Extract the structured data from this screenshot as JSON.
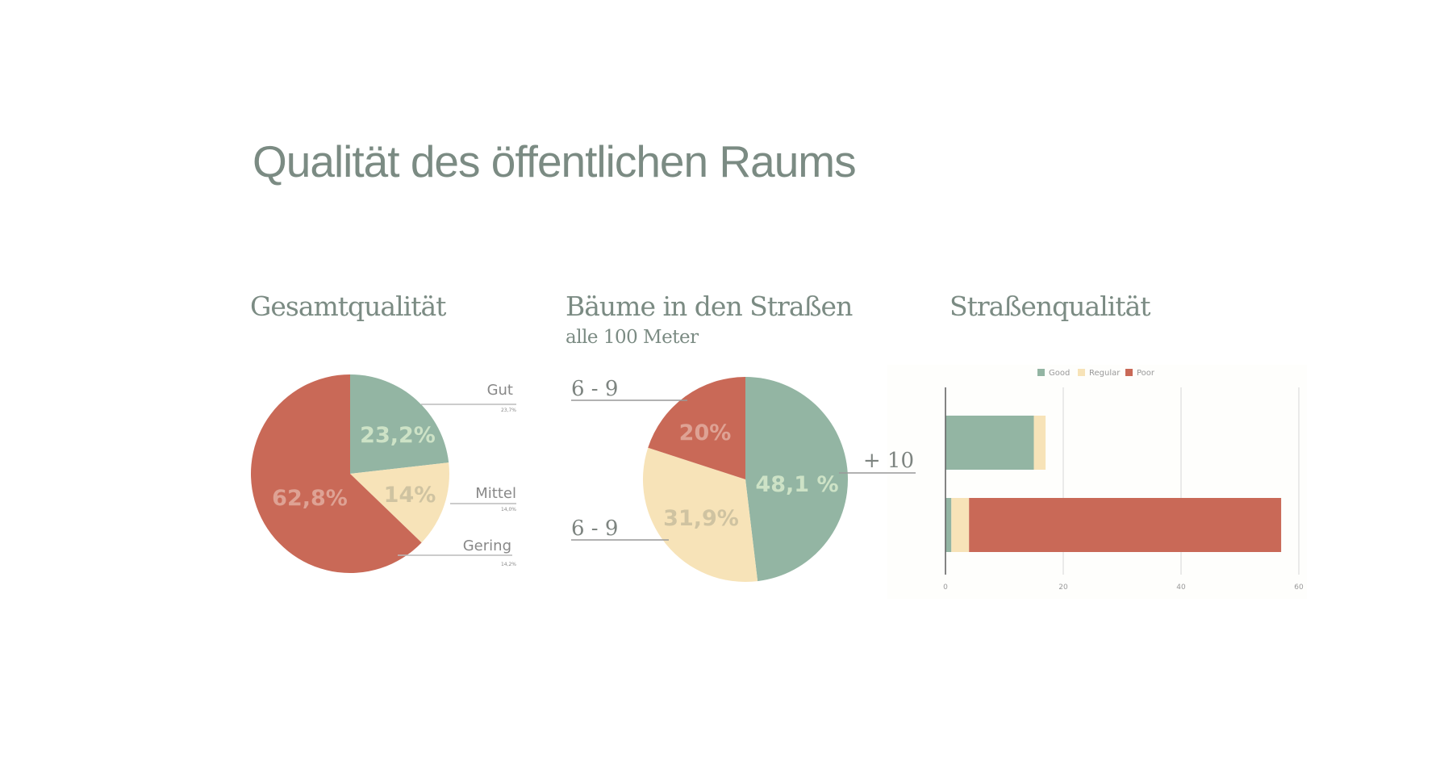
{
  "title": "Qualität des öffentlichen Raums",
  "colors": {
    "good": "#93b5a3",
    "regular": "#f7e3b8",
    "poor": "#c96957",
    "text": "#7b8b83"
  },
  "chart_data": [
    {
      "type": "pie",
      "title": "Gesamtqualität",
      "slices": [
        {
          "label": "Gut",
          "value": 23.2,
          "display": "23,2%",
          "small": "23,7%",
          "color": "#93b5a3",
          "text_color": "#cde2c6"
        },
        {
          "label": "Mittel",
          "value": 14,
          "display": "14%",
          "small": "14,0%",
          "color": "#f7e3b8",
          "text_color": "#cfc3a1"
        },
        {
          "label": "Gering",
          "value": 62.8,
          "display": "62,8%",
          "small": "14,2%",
          "color": "#c96957",
          "text_color": "#dea294"
        }
      ]
    },
    {
      "type": "pie",
      "title": "Bäume in den Straßen",
      "subtitle": "alle 100 Meter",
      "slices": [
        {
          "label": "+ 10",
          "value": 48.1,
          "display": "48,1 %",
          "color": "#93b5a3",
          "text_color": "#cde2c6"
        },
        {
          "label": "6 - 9",
          "value": 31.9,
          "display": "31,9%",
          "color": "#f7e3b8",
          "text_color": "#cfc3a1"
        },
        {
          "label": "6 - 9",
          "value": 20,
          "display": "20%",
          "color": "#c96957",
          "text_color": "#dea294"
        }
      ]
    },
    {
      "type": "bar",
      "orientation": "horizontal",
      "stacked": true,
      "title": "Straßenqualität",
      "legend": [
        "Good",
        "Regular",
        "Poor"
      ],
      "legend_position": "top",
      "series": [
        {
          "name": "Good",
          "values": [
            15,
            1
          ],
          "color": "#93b5a3"
        },
        {
          "name": "Regular",
          "values": [
            2,
            3
          ],
          "color": "#f7e3b8"
        },
        {
          "name": "Poor",
          "values": [
            0,
            53
          ],
          "color": "#c96957"
        }
      ],
      "xlim": [
        0,
        60
      ],
      "xticks": [
        "0",
        "20",
        "40",
        "60"
      ],
      "grid": true
    }
  ]
}
